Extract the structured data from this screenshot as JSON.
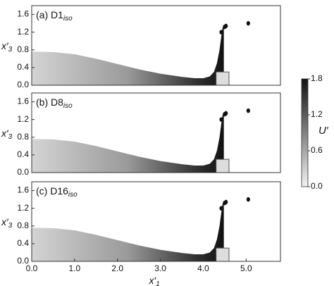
{
  "chart_data": [
    {
      "type": "area",
      "title": "(a) D1",
      "title_sub": "iso",
      "ylabel": "x′",
      "ylabel_sub": "3",
      "xlim": [
        0,
        5.8
      ],
      "ylim": [
        0,
        1.8
      ],
      "yticks": [
        {
          "value": 0,
          "label": "0.0"
        },
        0.4,
        0.8,
        1.2,
        1.6
      ],
      "x": [
        0,
        0.5,
        1.0,
        1.5,
        2.0,
        2.5,
        3.0,
        3.5,
        3.8,
        4.0,
        4.15,
        4.25,
        4.32,
        4.38,
        4.42,
        4.45,
        4.48
      ],
      "y": [
        0.76,
        0.75,
        0.7,
        0.6,
        0.48,
        0.36,
        0.26,
        0.19,
        0.16,
        0.16,
        0.2,
        0.3,
        0.5,
        0.8,
        1.1,
        1.3,
        1.33
      ],
      "droplets_x": [
        4.42,
        4.5,
        4.53,
        5.05
      ],
      "droplets_y": [
        1.2,
        1.32,
        1.34,
        1.4
      ],
      "obstacle_x": [
        4.3,
        4.6
      ],
      "obstacle_height": 0.3
    },
    {
      "type": "area",
      "title": "(b) D8",
      "title_sub": "iso",
      "ylabel": "x′",
      "ylabel_sub": "3",
      "xlim": [
        0,
        5.8
      ],
      "ylim": [
        0,
        1.8
      ],
      "yticks": [
        {
          "value": 0,
          "label": "0.0"
        },
        0.4,
        0.8,
        1.2,
        1.6
      ],
      "x": [
        0,
        0.5,
        1.0,
        1.5,
        2.0,
        2.5,
        3.0,
        3.5,
        3.8,
        4.0,
        4.15,
        4.25,
        4.32,
        4.38,
        4.42,
        4.45,
        4.48
      ],
      "y": [
        0.76,
        0.75,
        0.7,
        0.6,
        0.48,
        0.36,
        0.26,
        0.19,
        0.16,
        0.16,
        0.2,
        0.3,
        0.5,
        0.8,
        1.1,
        1.3,
        1.33
      ],
      "droplets_x": [
        4.42,
        4.5,
        4.53,
        5.05
      ],
      "droplets_y": [
        1.2,
        1.32,
        1.34,
        1.4
      ],
      "obstacle_x": [
        4.3,
        4.6
      ],
      "obstacle_height": 0.3
    },
    {
      "type": "area",
      "title": "(c) D16",
      "title_sub": "iso",
      "ylabel": "x′",
      "ylabel_sub": "3",
      "xlim": [
        0,
        5.8
      ],
      "ylim": [
        0,
        1.8
      ],
      "yticks": [
        {
          "value": 0,
          "label": "0.0"
        },
        0.4,
        0.8,
        1.2,
        1.6
      ],
      "xticks": [
        {
          "value": 0,
          "label": "0.0"
        },
        {
          "value": 1,
          "label": "1.0"
        },
        {
          "value": 2,
          "label": "2.0"
        },
        {
          "value": 3,
          "label": "3.0"
        },
        {
          "value": 4,
          "label": "4.0"
        },
        {
          "value": 5,
          "label": "5.0"
        }
      ],
      "xlabel": "x′",
      "xlabel_sub": "1",
      "x": [
        0,
        0.5,
        1.0,
        1.5,
        2.0,
        2.5,
        3.0,
        3.5,
        3.8,
        4.0,
        4.15,
        4.25,
        4.32,
        4.38,
        4.42,
        4.45,
        4.48
      ],
      "y": [
        0.76,
        0.75,
        0.7,
        0.6,
        0.48,
        0.36,
        0.26,
        0.19,
        0.16,
        0.16,
        0.2,
        0.3,
        0.5,
        0.8,
        1.1,
        1.3,
        1.33
      ],
      "droplets_x": [
        4.42,
        4.5,
        4.53,
        5.05
      ],
      "droplets_y": [
        1.2,
        1.32,
        1.34,
        1.4
      ],
      "obstacle_x": [
        4.3,
        4.6
      ],
      "obstacle_height": 0.3
    }
  ],
  "colorbar": {
    "label": "U′",
    "lim": [
      0,
      1.8
    ],
    "ticks": [
      {
        "value": 0,
        "label": "0.0"
      },
      0.6,
      1.2,
      1.8
    ],
    "colors": [
      "#f2f2f2",
      "#111111"
    ]
  }
}
